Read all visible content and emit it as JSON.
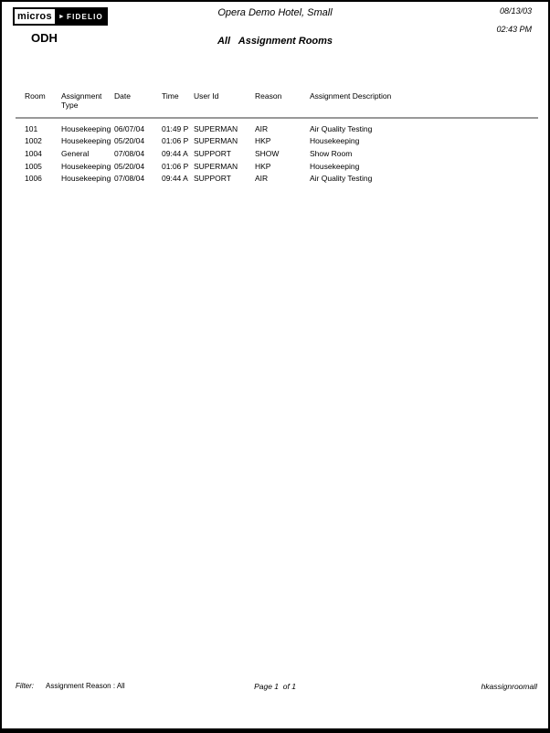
{
  "logo": {
    "micros": "micros",
    "fidelio": "FIDELIO"
  },
  "header": {
    "property_code": "ODH",
    "hotel_name": "Opera Demo Hotel, Small",
    "report_title": "All   Assignment Rooms",
    "date": "08/13/03",
    "time": "02:43 PM"
  },
  "table": {
    "columns": [
      "Room",
      "Assignment Type",
      "Date",
      "Time",
      "User Id",
      "Reason",
      "Assignment Description"
    ],
    "rows": [
      [
        "101",
        "Housekeeping",
        "06/07/04",
        "01:49 P",
        "SUPERMAN",
        "AIR",
        "Air Quality Testing"
      ],
      [
        "1002",
        "Housekeeping",
        "05/20/04",
        "01:06 P",
        "SUPERMAN",
        "HKP",
        "Housekeeping"
      ],
      [
        "1004",
        "General",
        "07/08/04",
        "09:44 A",
        "SUPPORT",
        "SHOW",
        "Show Room"
      ],
      [
        "1005",
        "Housekeeping",
        "05/20/04",
        "01:06 P",
        "SUPERMAN",
        "HKP",
        "Housekeeping"
      ],
      [
        "1006",
        "Housekeeping",
        "07/08/04",
        "09:44 A",
        "SUPPORT",
        "AIR",
        "Air Quality Testing"
      ]
    ]
  },
  "footer": {
    "filter_label": "Filter:",
    "filter_value": "Assignment Reason : All",
    "page_info": "Page 1  of 1",
    "report_name": "hkassignroomall"
  }
}
